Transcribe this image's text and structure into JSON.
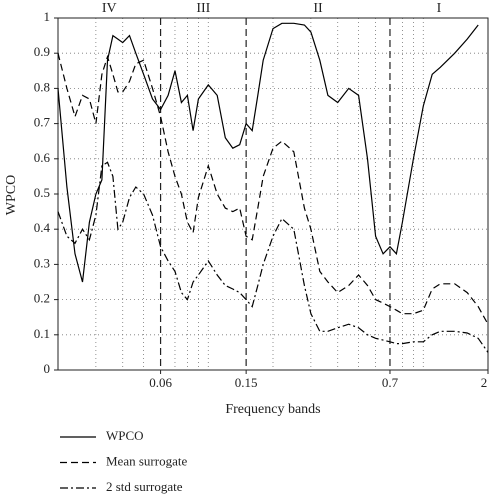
{
  "chart_data": {
    "type": "line",
    "xlabel": "Frequency bands",
    "ylabel": "WPCO",
    "xscale": "log",
    "xlim": [
      0.02,
      2
    ],
    "ylim": [
      0,
      1
    ],
    "xticks": [
      0.06,
      0.15,
      0.7,
      2
    ],
    "yticks": [
      0,
      0.1,
      0.2,
      0.3,
      0.4,
      0.5,
      0.6,
      0.7,
      0.8,
      0.9,
      1
    ],
    "xminor": [
      0.03,
      0.04,
      0.05,
      0.07,
      0.08,
      0.09,
      0.1,
      0.2,
      0.3,
      0.4,
      0.5,
      0.6,
      0.8,
      0.9,
      1
    ],
    "boundaries": [
      0.06,
      0.15,
      0.7
    ],
    "regions": [
      "IV",
      "III",
      "II",
      "I"
    ],
    "grid": true,
    "legend": "below",
    "x": [
      0.02,
      0.022,
      0.024,
      0.026,
      0.028,
      0.03,
      0.032,
      0.034,
      0.036,
      0.038,
      0.04,
      0.043,
      0.046,
      0.05,
      0.055,
      0.06,
      0.065,
      0.07,
      0.075,
      0.08,
      0.085,
      0.09,
      0.1,
      0.11,
      0.12,
      0.13,
      0.14,
      0.15,
      0.16,
      0.17,
      0.18,
      0.2,
      0.22,
      0.25,
      0.28,
      0.3,
      0.33,
      0.36,
      0.4,
      0.45,
      0.5,
      0.55,
      0.6,
      0.65,
      0.7,
      0.75,
      0.8,
      0.9,
      1,
      1.1,
      1.2,
      1.4,
      1.6,
      1.8,
      2
    ],
    "series": [
      {
        "name": "WPCO",
        "color": "#000000",
        "dash": "solid",
        "values": [
          0.8,
          0.52,
          0.33,
          0.25,
          0.42,
          0.5,
          0.54,
          0.88,
          0.95,
          0.94,
          0.93,
          0.95,
          0.9,
          0.84,
          0.77,
          0.74,
          0.78,
          0.85,
          0.76,
          0.78,
          0.68,
          0.77,
          0.81,
          0.78,
          0.66,
          0.63,
          0.64,
          0.7,
          0.68,
          0.78,
          0.88,
          0.97,
          0.985,
          0.985,
          0.98,
          0.96,
          0.88,
          0.78,
          0.76,
          0.8,
          0.78,
          0.6,
          0.38,
          0.33,
          0.35,
          0.33,
          0.42,
          0.6,
          0.75,
          0.84,
          0.86,
          0.9,
          0.94,
          0.98,
          null
        ]
      },
      {
        "name": "Mean surrogate",
        "color": "#000000",
        "dash": "dashed",
        "values": [
          0.9,
          0.8,
          0.72,
          0.78,
          0.77,
          0.7,
          0.84,
          0.89,
          0.84,
          0.79,
          0.79,
          0.82,
          0.87,
          0.88,
          0.8,
          0.72,
          0.62,
          0.55,
          0.5,
          0.42,
          0.39,
          0.49,
          0.58,
          0.5,
          0.46,
          0.45,
          0.46,
          0.38,
          0.37,
          0.46,
          0.55,
          0.63,
          0.65,
          0.62,
          0.46,
          0.4,
          0.28,
          0.25,
          0.22,
          0.24,
          0.27,
          0.24,
          0.2,
          0.19,
          0.18,
          0.17,
          0.16,
          0.16,
          0.17,
          0.23,
          0.245,
          0.245,
          0.22,
          0.18,
          0.13
        ]
      },
      {
        "name": "2 std surrogate",
        "color": "#000000",
        "dash": "dashdot",
        "values": [
          0.45,
          0.38,
          0.36,
          0.4,
          0.37,
          0.44,
          0.58,
          0.59,
          0.55,
          0.4,
          0.42,
          0.49,
          0.52,
          0.5,
          0.44,
          0.35,
          0.31,
          0.28,
          0.22,
          0.2,
          0.25,
          0.27,
          0.31,
          0.27,
          0.24,
          0.23,
          0.22,
          0.2,
          0.18,
          0.24,
          0.3,
          0.38,
          0.43,
          0.4,
          0.24,
          0.16,
          0.11,
          0.11,
          0.12,
          0.13,
          0.12,
          0.1,
          0.09,
          0.085,
          0.08,
          0.075,
          0.075,
          0.08,
          0.08,
          0.1,
          0.11,
          0.11,
          0.105,
          0.09,
          0.05
        ]
      }
    ]
  }
}
